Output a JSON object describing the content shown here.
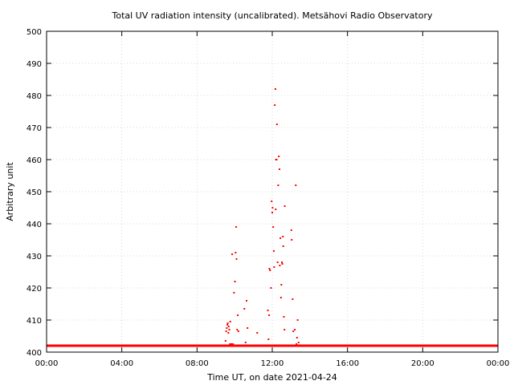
{
  "chart_data": {
    "type": "scatter",
    "title": "Total UV radiation intensity (uncalibrated). Metsähovi Radio Observatory",
    "xlabel": "Time UT, on date 2021-04-24",
    "ylabel": "Arbitrary unit",
    "xlim": [
      "00:00",
      "24:00"
    ],
    "ylim": [
      400,
      500
    ],
    "x_ticks": [
      "00:00",
      "04:00",
      "08:00",
      "12:00",
      "16:00",
      "20:00",
      "00:00"
    ],
    "y_ticks": [
      400,
      410,
      420,
      430,
      440,
      450,
      460,
      470,
      480,
      490,
      500
    ],
    "grid": true,
    "color": "#ff0000",
    "baseline": {
      "value": 402,
      "from": "00:00",
      "to": "24:00"
    },
    "series": [
      {
        "x": [
          "09:31",
          "09:33",
          "09:35",
          "09:37",
          "09:38",
          "09:40",
          "09:41",
          "09:43",
          "09:45",
          "09:46",
          "09:48",
          "09:50",
          "09:52",
          "09:55",
          "09:58",
          "10:01",
          "10:03",
          "10:05",
          "10:06",
          "10:08",
          "10:10",
          "10:12",
          "10:14",
          "10:31",
          "10:35",
          "10:38",
          "10:41",
          "11:12",
          "11:14",
          "11:46",
          "11:48",
          "11:50",
          "11:51",
          "11:53",
          "11:56",
          "11:58",
          "12:00",
          "12:01",
          "12:03",
          "12:05",
          "12:06",
          "12:08",
          "12:10",
          "12:11",
          "12:12",
          "12:14",
          "12:15",
          "12:17",
          "12:19",
          "12:21",
          "12:23",
          "12:24",
          "12:26",
          "12:28",
          "12:29",
          "12:31",
          "12:32",
          "12:34",
          "12:35",
          "12:37",
          "12:39",
          "12:40",
          "13:01",
          "13:02",
          "13:05",
          "13:07",
          "13:12",
          "13:15",
          "13:17",
          "13:19",
          "13:21",
          "13:24"
        ],
        "y": [
          403.5,
          406.5,
          407.5,
          408.5,
          409,
          406,
          408,
          407,
          402.5,
          409.5,
          402.5,
          402.5,
          430.5,
          402.5,
          418.5,
          422,
          431,
          439,
          429,
          407,
          411.5,
          406.5,
          402,
          413.5,
          403,
          416,
          407.5,
          406,
          402,
          413,
          404,
          411.5,
          426,
          425.5,
          420,
          447,
          443.5,
          445,
          439,
          431.5,
          426.5,
          477,
          482,
          444.5,
          460,
          460,
          471,
          428,
          452,
          461,
          457,
          427,
          435.5,
          417,
          421,
          428,
          427.5,
          436,
          433,
          411,
          407,
          445.5,
          438,
          435,
          416.5,
          406.5,
          407,
          452,
          402.5,
          404.5,
          410,
          403
        ]
      }
    ]
  }
}
